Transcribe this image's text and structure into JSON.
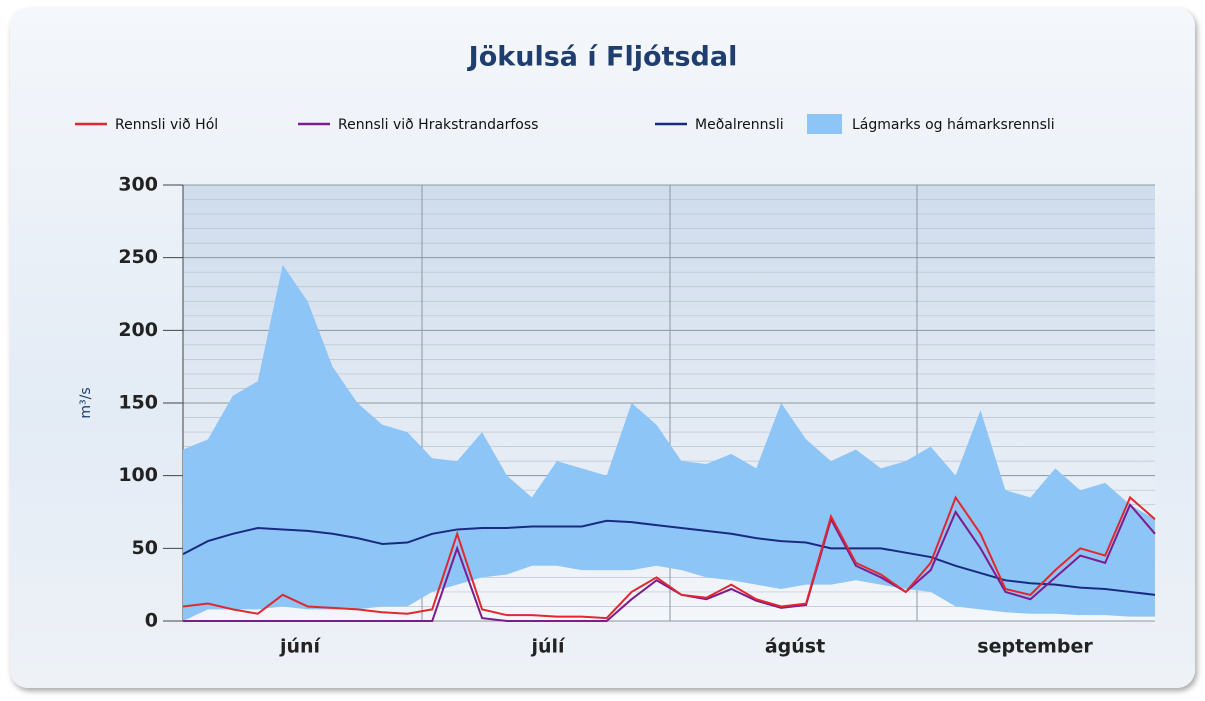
{
  "chart_data": {
    "type": "line",
    "title": "Jökulsá í Fljótsdal",
    "y_label": "m³/s",
    "x_labels": [
      "júní",
      "júlí",
      "ágúst",
      "september"
    ],
    "ylim": [
      0,
      300
    ],
    "yticks": [
      0,
      50,
      100,
      150,
      200,
      250,
      300
    ],
    "minor_step": 10,
    "grid": true,
    "series": [
      {
        "name": "Rennsli við Hól",
        "color": "#e0282e",
        "values": [
          10,
          12,
          8,
          5,
          18,
          10,
          9,
          8,
          6,
          5,
          8,
          60,
          8,
          4,
          4,
          3,
          3,
          2,
          20,
          30,
          18,
          16,
          25,
          15,
          10,
          12,
          72,
          40,
          32,
          20,
          40,
          85,
          60,
          22,
          18,
          35,
          50,
          45,
          85,
          70
        ]
      },
      {
        "name": "Rennsli við Hrakstrandarfoss",
        "color": "#7b1d8e",
        "values": [
          0,
          0,
          0,
          0,
          0,
          0,
          0,
          0,
          0,
          0,
          0,
          50,
          2,
          0,
          0,
          0,
          0,
          0,
          15,
          28,
          18,
          15,
          22,
          14,
          9,
          11,
          70,
          38,
          30,
          20,
          35,
          75,
          50,
          20,
          15,
          30,
          45,
          40,
          80,
          60
        ]
      },
      {
        "name": "Meðalrennsli",
        "color": "#1a2a80",
        "values": [
          46,
          55,
          60,
          64,
          63,
          62,
          60,
          57,
          53,
          54,
          60,
          63,
          64,
          64,
          65,
          65,
          65,
          69,
          68,
          66,
          64,
          62,
          60,
          57,
          55,
          54,
          50,
          50,
          50,
          47,
          44,
          38,
          33,
          28,
          26,
          25,
          23,
          22,
          20,
          18
        ]
      },
      {
        "name": "Lágmarks og hámarksrennsli",
        "color": "#8ec5f7",
        "type": "band",
        "high": [
          118,
          125,
          155,
          165,
          245,
          220,
          175,
          150,
          135,
          130,
          112,
          110,
          130,
          100,
          85,
          110,
          105,
          100,
          150,
          135,
          110,
          108,
          115,
          105,
          150,
          125,
          110,
          118,
          105,
          110,
          120,
          100,
          145,
          90,
          85,
          105,
          90,
          95,
          80,
          70
        ],
        "low": [
          0,
          8,
          8,
          8,
          10,
          8,
          8,
          8,
          10,
          10,
          20,
          25,
          30,
          32,
          38,
          38,
          35,
          35,
          35,
          38,
          35,
          30,
          28,
          25,
          22,
          25,
          25,
          28,
          25,
          22,
          20,
          10,
          8,
          6,
          5,
          5,
          4,
          4,
          3,
          3
        ]
      }
    ]
  }
}
